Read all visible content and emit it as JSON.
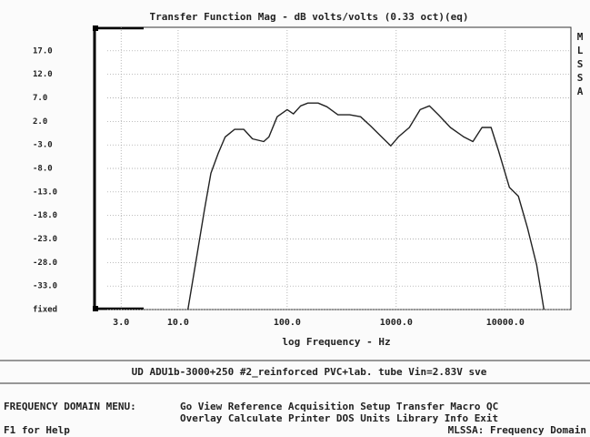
{
  "chart_data": {
    "type": "line",
    "title": "Transfer Function Mag - dB volts/volts (0.33 oct)(eq)",
    "x_label": "log Frequency - Hz",
    "side_label": "MLSSA",
    "log_x": true,
    "grid": true,
    "color": "#222222",
    "xlim": [
      2.24,
      40000
    ],
    "xticks": [
      {
        "value": 3,
        "label": "3.0"
      },
      {
        "value": 10,
        "label": "10.0"
      },
      {
        "value": 100,
        "label": "100.0"
      },
      {
        "value": 1000,
        "label": "1000.0"
      },
      {
        "value": 10000,
        "label": "10000.0"
      }
    ],
    "ylim": [
      -38,
      22
    ],
    "yticks": [
      {
        "value": -38,
        "label": "fixed"
      },
      {
        "value": -33,
        "label": "-33.0"
      },
      {
        "value": -28,
        "label": "-28.0"
      },
      {
        "value": -23,
        "label": "-23.0"
      },
      {
        "value": -18,
        "label": "-18.0"
      },
      {
        "value": -13,
        "label": "-13.0"
      },
      {
        "value": -8,
        "label": "-8.0"
      },
      {
        "value": -3,
        "label": "-3.0"
      },
      {
        "value": 2,
        "label": "2.0"
      },
      {
        "value": 7,
        "label": "7.0"
      },
      {
        "value": 12,
        "label": "12.0"
      },
      {
        "value": 17,
        "label": "17.0"
      }
    ],
    "x": [
      12.3,
      14.4,
      17.4,
      20,
      23.3,
      27,
      33,
      40,
      48,
      61,
      68,
      81,
      100,
      114,
      133,
      155,
      192,
      232,
      292,
      374,
      471,
      584,
      735,
      893,
      1047,
      1319,
      1660,
      2013,
      2442,
      3135,
      4169,
      5050,
      6120,
      7420,
      8660,
      10900,
      13200,
      16000,
      19400,
      22600
    ],
    "values": [
      -38,
      -28.5,
      -16.9,
      -9,
      -4.8,
      -1.3,
      0.3,
      0.3,
      -1.7,
      -2.3,
      -1.3,
      3,
      4.5,
      3.6,
      5.3,
      5.9,
      5.9,
      5.1,
      3.4,
      3.4,
      3,
      1,
      -1.3,
      -3.2,
      -1.3,
      0.7,
      4.5,
      5.3,
      3.4,
      0.7,
      -1.3,
      -2.3,
      0.7,
      0.7,
      -4.2,
      -12,
      -13.9,
      -20.7,
      -28.5,
      -38
    ]
  },
  "caption": "UD ADU1b-3000+250 #2_reinforced PVC+lab. tube Vin=2.83V sve",
  "menu": {
    "label": "FREQUENCY DOMAIN MENU:",
    "rows": [
      [
        "Go",
        "View",
        "Reference",
        "Acquisition",
        "Setup",
        "Transfer",
        "Macro",
        "QC"
      ],
      [
        "Overlay",
        "Calculate",
        "Printer",
        "DOS",
        "Units",
        "Library",
        "Info",
        "Exit"
      ]
    ]
  },
  "status": {
    "help": "F1 for Help",
    "mode": "MLSSA: Frequency Domain"
  }
}
